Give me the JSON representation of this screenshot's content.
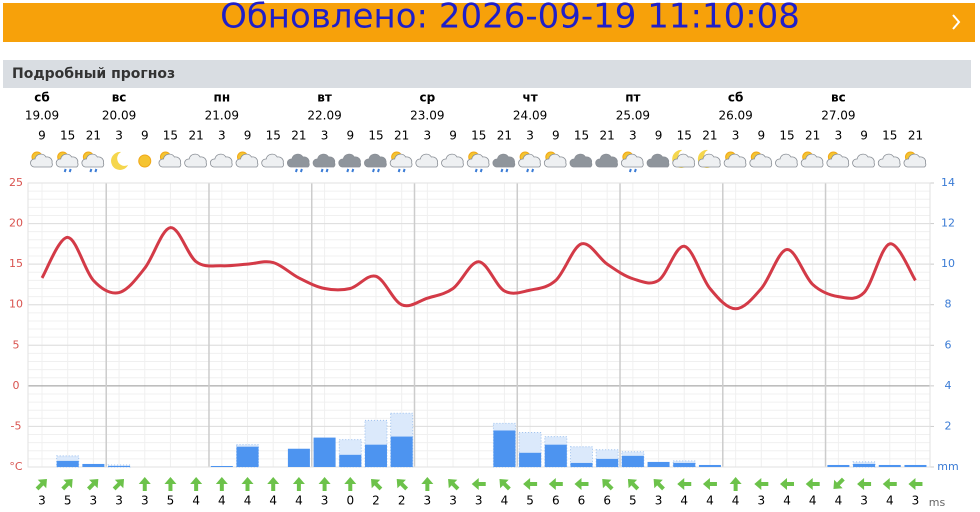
{
  "banner": {
    "text": "Обновлено: 2026-09-19 11:10:08"
  },
  "section_title": "Подробный прогноз",
  "chart_data": {
    "type": "weather",
    "days": [
      {
        "name": "сб",
        "date": "19.09"
      },
      {
        "name": "вс",
        "date": "20.09"
      },
      {
        "name": "пн",
        "date": "21.09"
      },
      {
        "name": "вт",
        "date": "22.09"
      },
      {
        "name": "ср",
        "date": "23.09"
      },
      {
        "name": "чт",
        "date": "24.09"
      },
      {
        "name": "пт",
        "date": "25.09"
      },
      {
        "name": "сб",
        "date": "26.09"
      },
      {
        "name": "вс",
        "date": "27.09"
      }
    ],
    "hours": [
      9,
      15,
      21,
      3,
      9,
      15,
      21,
      3,
      9,
      15,
      21,
      3,
      9,
      15,
      21,
      3,
      9,
      15,
      21,
      3,
      9,
      15,
      21,
      3,
      9,
      15,
      21,
      3,
      9,
      15,
      21,
      3,
      9,
      15,
      21
    ],
    "icons": [
      "partly",
      "partly-rain",
      "partly-rain",
      "moon",
      "sun",
      "partly",
      "cloud",
      "cloud",
      "partly",
      "cloud",
      "dark-rain",
      "dark-rain",
      "dark-rain",
      "dark-rain",
      "partly-rain",
      "cloud",
      "cloud",
      "partly-rain",
      "dark-rain",
      "partly-rain",
      "partly",
      "dark",
      "dark",
      "partly-rain",
      "dark",
      "moon-cloud",
      "moon-partly",
      "partly",
      "partly",
      "cloud",
      "partly",
      "partly",
      "cloud",
      "cloud",
      "partly"
    ],
    "temperature": [
      13.3,
      18.3,
      13.0,
      11.5,
      14.5,
      19.5,
      15.3,
      14.8,
      15.0,
      15.2,
      13.3,
      12.0,
      12.0,
      13.5,
      10.0,
      10.8,
      12.0,
      15.3,
      11.7,
      11.8,
      13.0,
      17.5,
      15.0,
      13.2,
      13.0,
      17.2,
      12.0,
      9.5,
      12.0,
      16.8,
      12.5,
      11.0,
      11.5,
      17.5,
      13.0
    ],
    "temperature_color": "#d33a47",
    "ylim": [
      -10,
      25
    ],
    "yticks": [
      {
        "value": -10,
        "label": "°C"
      },
      -5,
      0,
      5,
      10,
      15,
      20,
      25
    ],
    "precipitation": [
      0,
      0.3,
      0.15,
      0.05,
      0,
      0,
      0,
      0.05,
      1.0,
      0,
      0.9,
      1.45,
      0.6,
      1.1,
      1.5,
      0,
      0,
      0,
      1.8,
      0.7,
      1.1,
      0.2,
      0.4,
      0.55,
      0.25,
      0.2,
      0.1,
      0,
      0,
      0,
      0,
      0.1,
      0.15,
      0.1,
      0.1
    ],
    "precipitation_max": [
      null,
      0.55,
      null,
      0.1,
      null,
      null,
      null,
      null,
      1.1,
      null,
      null,
      null,
      1.35,
      2.3,
      2.65,
      null,
      null,
      null,
      2.15,
      1.7,
      1.5,
      1.0,
      0.85,
      0.75,
      null,
      0.3,
      null,
      null,
      null,
      null,
      null,
      null,
      0.25,
      null,
      null
    ],
    "precip_color": "#4d94f0",
    "y2lim": [
      0,
      14
    ],
    "y2ticks": [
      {
        "value": 0,
        "label": "mm"
      },
      2,
      4,
      6,
      8,
      10,
      12,
      14
    ],
    "wind_speed": [
      3,
      5,
      3,
      3,
      3,
      5,
      4,
      4,
      4,
      4,
      4,
      3,
      0,
      2,
      2,
      3,
      3,
      3,
      4,
      5,
      6,
      6,
      6,
      5,
      3,
      4,
      4,
      4,
      3,
      4,
      4,
      4,
      3,
      4,
      3
    ],
    "wind_direction": [
      45,
      45,
      45,
      45,
      0,
      0,
      0,
      0,
      0,
      0,
      0,
      0,
      0,
      315,
      315,
      0,
      315,
      270,
      315,
      270,
      270,
      270,
      315,
      315,
      315,
      270,
      270,
      0,
      270,
      270,
      270,
      225,
      270,
      270,
      270
    ],
    "wind_unit": "ms",
    "wind_color": "#6cc24a"
  }
}
